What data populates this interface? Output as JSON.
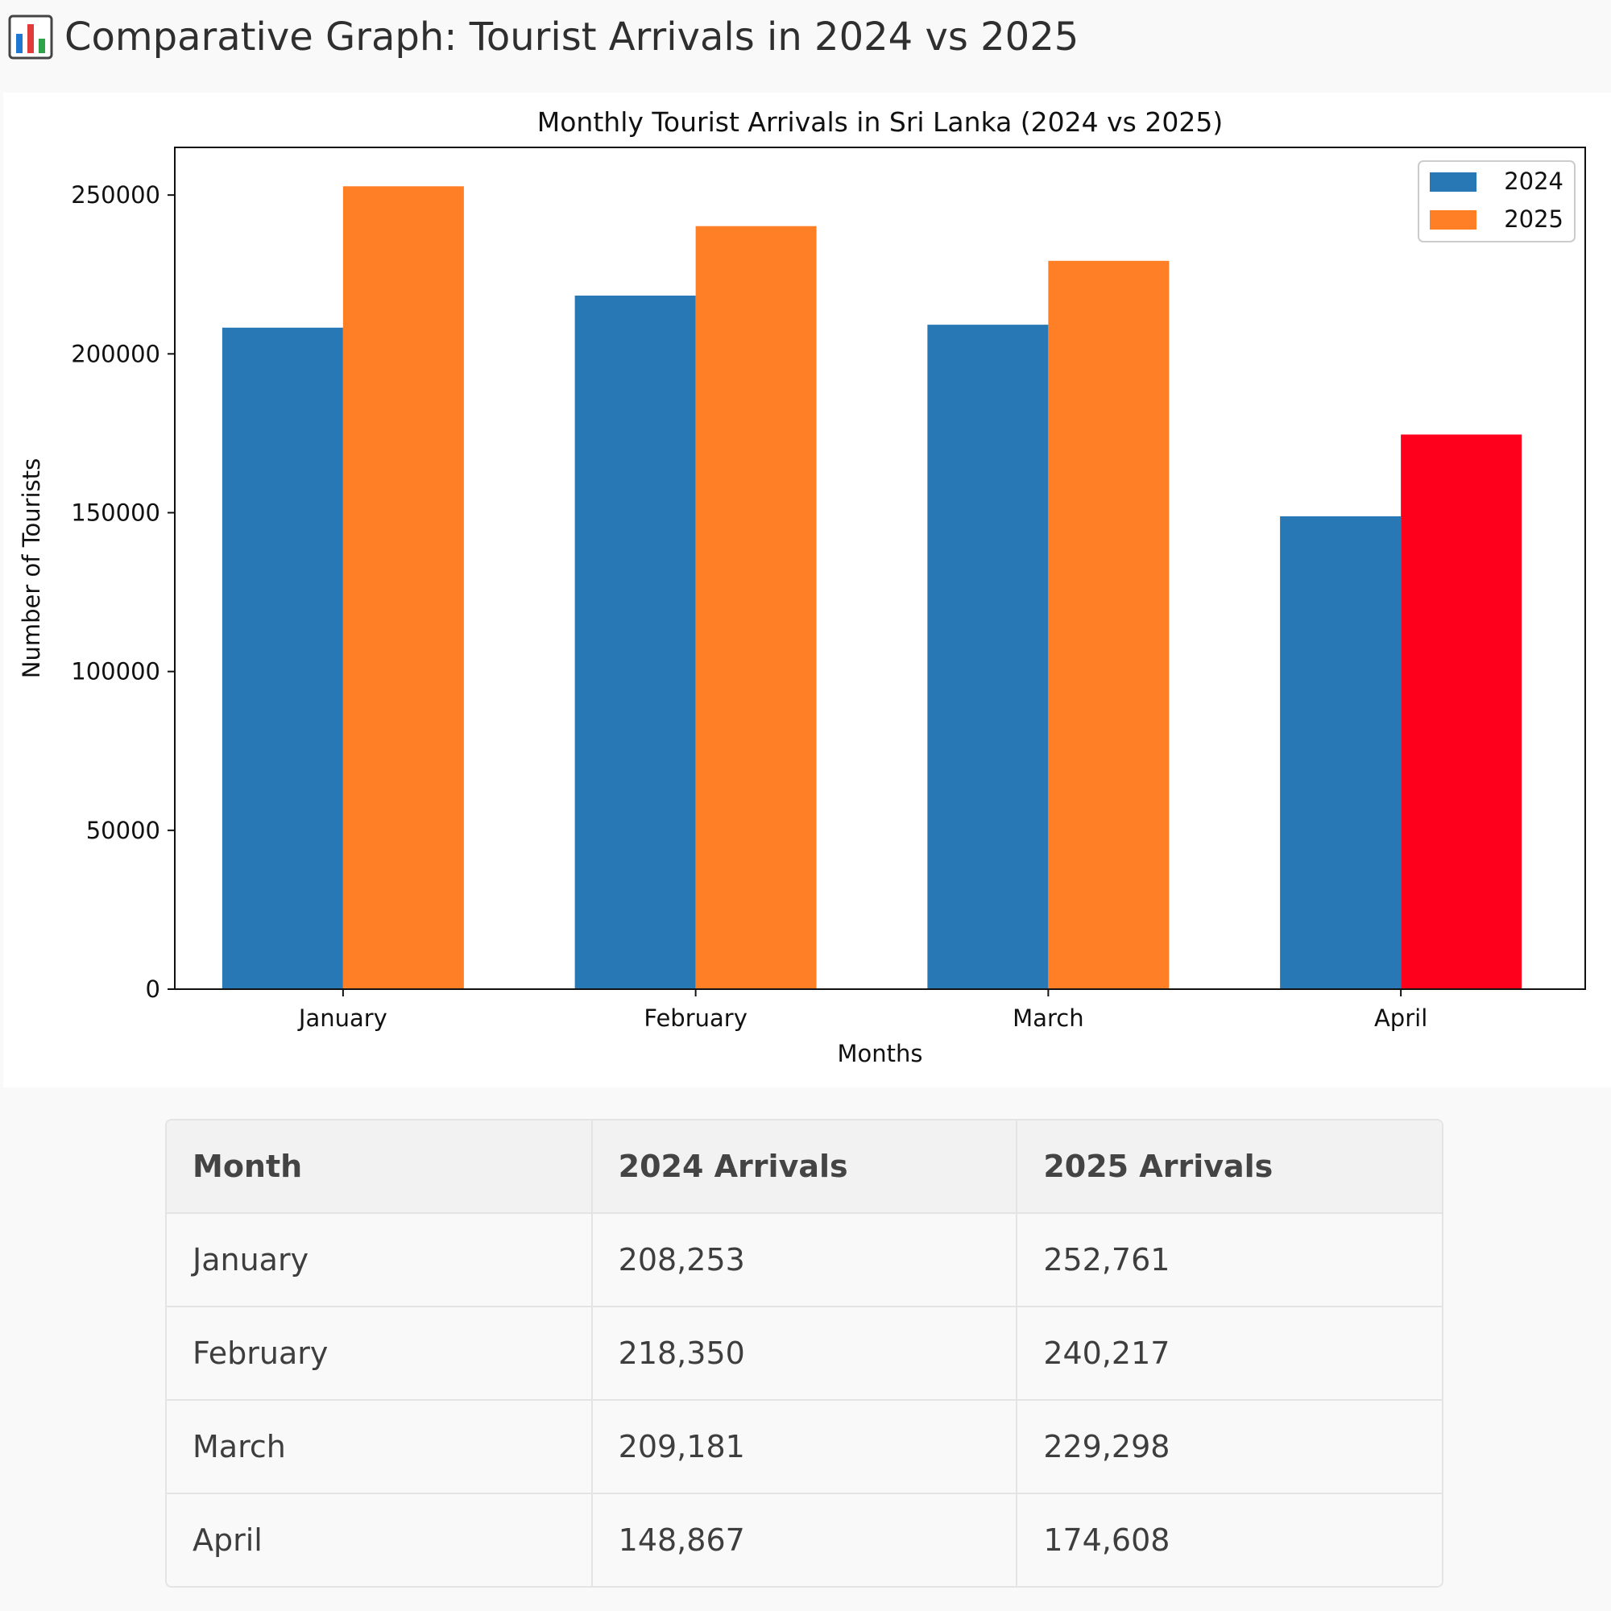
{
  "heading": {
    "icon": "bar-chart-icon",
    "text": "Comparative Graph: Tourist Arrivals in 2024 vs 2025"
  },
  "chart_data": {
    "type": "bar",
    "title": "Monthly Tourist Arrivals in Sri Lanka (2024 vs 2025)",
    "xlabel": "Months",
    "ylabel": "Number of Tourists",
    "categories": [
      "January",
      "February",
      "March",
      "April"
    ],
    "series": [
      {
        "name": "2024",
        "color": "#2878b5",
        "values": [
          208253,
          218350,
          209181,
          148867
        ]
      },
      {
        "name": "2025",
        "color": "#ff7f27",
        "values": [
          252761,
          240217,
          229298,
          174608
        ],
        "highlight": {
          "index": 3,
          "color": "#ff001c"
        }
      }
    ],
    "ylim": [
      0,
      265000
    ],
    "yticks": [
      0,
      50000,
      100000,
      150000,
      200000,
      250000
    ],
    "legend": "top-right",
    "grid": false
  },
  "table": {
    "headers": [
      "Month",
      "2024 Arrivals",
      "2025 Arrivals"
    ],
    "rows": [
      [
        "January",
        "208,253",
        "252,761"
      ],
      [
        "February",
        "218,350",
        "240,217"
      ],
      [
        "March",
        "209,181",
        "229,298"
      ],
      [
        "April",
        "148,867",
        "174,608"
      ]
    ]
  }
}
